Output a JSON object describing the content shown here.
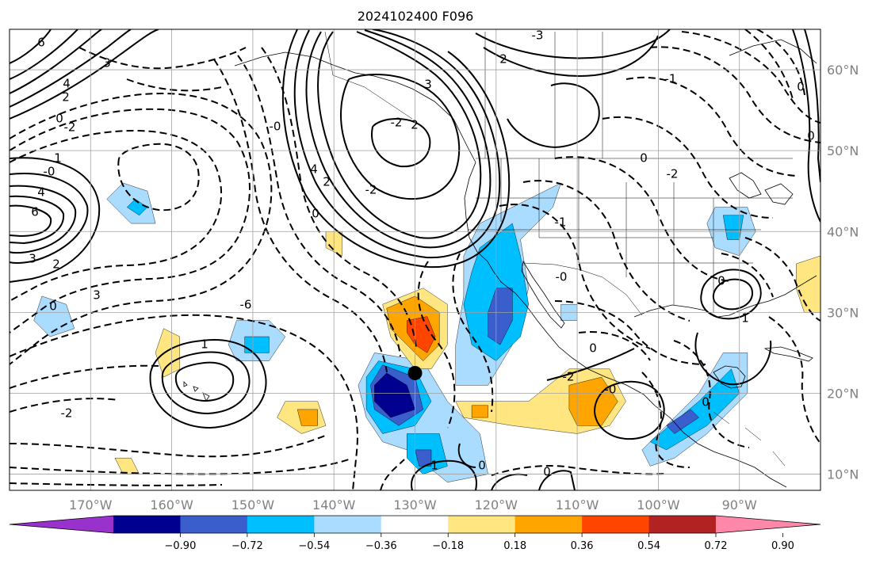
{
  "map": {
    "title": "2024102400 F096",
    "lat_labels": [
      "60°N",
      "50°N",
      "40°N",
      "30°N",
      "20°N",
      "10°N"
    ],
    "lon_labels": [
      "170°W",
      "160°W",
      "150°W",
      "140°W",
      "130°W",
      "120°W",
      "110°W",
      "100°W",
      "90°W"
    ],
    "extent": {
      "lon_min": -180,
      "lon_max": -80,
      "lat_min": 8,
      "lat_max": 65
    },
    "gridlines": true,
    "contour_labels": [
      "6",
      "3",
      "4",
      "2",
      "0",
      "-2",
      "1",
      "-0",
      "4",
      "6",
      "3",
      "2",
      "0",
      "3",
      "-2",
      "-6",
      "4",
      "2",
      "0",
      "1",
      "3",
      "2",
      "-3",
      "-2",
      "2",
      "-2",
      "-0",
      "-1",
      "0",
      "-2",
      "-1",
      "-0",
      "0",
      "1",
      "0",
      "0",
      "1",
      "0",
      "-0",
      "0",
      "-2",
      "0",
      "0"
    ],
    "marker": {
      "name": "center-point",
      "lon": -130.0,
      "lat": 22.5,
      "color": "#000000"
    },
    "shading": [
      {
        "name": "blue-pacific-a",
        "color": "#aadcff",
        "pts": [
          [
            -168,
            44
          ],
          [
            -165,
            41
          ],
          [
            -162,
            41
          ],
          [
            -163,
            45
          ],
          [
            -166,
            46
          ]
        ]
      },
      {
        "name": "blue-pacific-a-core",
        "color": "#00bfff",
        "pts": [
          [
            -165.5,
            43
          ],
          [
            -164,
            42
          ],
          [
            -163,
            43
          ],
          [
            -164.5,
            44
          ]
        ]
      },
      {
        "name": "blue-small-w",
        "color": "#aadcff",
        "pts": [
          [
            -176,
            32
          ],
          [
            -173,
            31
          ],
          [
            -172,
            28
          ],
          [
            -175,
            27
          ],
          [
            -177,
            29
          ]
        ]
      },
      {
        "name": "yellow-158",
        "color": "#ffe680",
        "pts": [
          [
            -161,
            28
          ],
          [
            -159,
            27
          ],
          [
            -159,
            23
          ],
          [
            -161,
            22
          ],
          [
            -162,
            25
          ]
        ]
      },
      {
        "name": "blue-148",
        "color": "#aadcff",
        "pts": [
          [
            -152,
            29
          ],
          [
            -148,
            29
          ],
          [
            -146,
            27
          ],
          [
            -148,
            24
          ],
          [
            -152,
            24
          ],
          [
            -153,
            26
          ]
        ]
      },
      {
        "name": "blue-148-core",
        "color": "#00bfff",
        "pts": [
          [
            -151,
            27
          ],
          [
            -148,
            27
          ],
          [
            -148,
            25
          ],
          [
            -151,
            25
          ]
        ]
      },
      {
        "name": "yellow-140",
        "color": "#ffe680",
        "pts": [
          [
            -141,
            40
          ],
          [
            -139,
            40
          ],
          [
            -139,
            37
          ],
          [
            -141,
            38
          ]
        ]
      },
      {
        "name": "yellow-147",
        "color": "#ffe680",
        "pts": [
          [
            -146,
            19
          ],
          [
            -142,
            19
          ],
          [
            -141,
            16
          ],
          [
            -144,
            15
          ],
          [
            -147,
            17
          ]
        ]
      },
      {
        "name": "orange-147",
        "color": "#ffa500",
        "pts": [
          [
            -144.5,
            18
          ],
          [
            -142,
            18
          ],
          [
            -142,
            16
          ],
          [
            -144,
            16
          ]
        ]
      },
      {
        "name": "yellow-165",
        "color": "#ffe680",
        "pts": [
          [
            -167,
            12
          ],
          [
            -165,
            12
          ],
          [
            -164,
            10
          ],
          [
            -166,
            10
          ]
        ]
      },
      {
        "name": "blue-main-light",
        "color": "#aadcff",
        "pts": [
          [
            -135,
            25
          ],
          [
            -129,
            24
          ],
          [
            -126,
            19
          ],
          [
            -122,
            15
          ],
          [
            -121,
            10
          ],
          [
            -126,
            9
          ],
          [
            -131,
            13
          ],
          [
            -134,
            14
          ],
          [
            -136,
            17
          ],
          [
            -137,
            21
          ]
        ]
      },
      {
        "name": "blue-main",
        "color": "#00bfff",
        "pts": [
          [
            -134.5,
            24
          ],
          [
            -130,
            23
          ],
          [
            -128,
            19
          ],
          [
            -130,
            16
          ],
          [
            -134,
            15
          ],
          [
            -136,
            18
          ],
          [
            -136,
            22
          ]
        ]
      },
      {
        "name": "blue-main-mid",
        "color": "#3a5fcd",
        "pts": [
          [
            -134,
            23.5
          ],
          [
            -130,
            22
          ],
          [
            -129,
            18
          ],
          [
            -132,
            16
          ],
          [
            -135,
            18
          ],
          [
            -135.5,
            21
          ]
        ]
      },
      {
        "name": "blue-main-core",
        "color": "#000090",
        "pts": [
          [
            -133.5,
            22.5
          ],
          [
            -131,
            21
          ],
          [
            -130,
            18
          ],
          [
            -133,
            17
          ],
          [
            -135,
            19
          ],
          [
            -135,
            21
          ]
        ]
      },
      {
        "name": "blue-south",
        "color": "#00bfff",
        "pts": [
          [
            -131,
            15
          ],
          [
            -127,
            15
          ],
          [
            -126,
            11
          ],
          [
            -129,
            10
          ],
          [
            -131,
            12
          ]
        ]
      },
      {
        "name": "blue-south-core",
        "color": "#3a5fcd",
        "pts": [
          [
            -130,
            13
          ],
          [
            -128,
            13
          ],
          [
            -128,
            11
          ],
          [
            -129.5,
            11
          ]
        ]
      },
      {
        "name": "yellow-main",
        "color": "#ffe680",
        "pts": [
          [
            -134,
            31
          ],
          [
            -129,
            33
          ],
          [
            -126,
            31
          ],
          [
            -126,
            26
          ],
          [
            -128,
            23
          ],
          [
            -130,
            23
          ],
          [
            -133,
            27
          ]
        ]
      },
      {
        "name": "orange-main",
        "color": "#ffa500",
        "pts": [
          [
            -133.5,
            30.5
          ],
          [
            -130,
            32
          ],
          [
            -127,
            30
          ],
          [
            -127,
            26
          ],
          [
            -129,
            24
          ],
          [
            -131,
            26
          ],
          [
            -133,
            28
          ]
        ]
      },
      {
        "name": "red-main",
        "color": "#ff4500",
        "pts": [
          [
            -131,
            29
          ],
          [
            -128.5,
            29.5
          ],
          [
            -127.5,
            27
          ],
          [
            -128.5,
            25
          ],
          [
            -130,
            26
          ],
          [
            -131,
            27.5
          ]
        ]
      },
      {
        "name": "blue-coast-light",
        "color": "#aadcff",
        "pts": [
          [
            -122,
            41
          ],
          [
            -116,
            44
          ],
          [
            -112,
            46
          ],
          [
            -113,
            43
          ],
          [
            -117,
            39
          ],
          [
            -116,
            33
          ],
          [
            -117,
            29
          ],
          [
            -118,
            26
          ],
          [
            -121,
            21
          ],
          [
            -125,
            21
          ],
          [
            -125,
            26
          ],
          [
            -124,
            32
          ],
          [
            -124,
            37
          ]
        ]
      },
      {
        "name": "blue-coast",
        "color": "#00bfff",
        "pts": [
          [
            -122,
            38
          ],
          [
            -118,
            41
          ],
          [
            -117,
            37
          ],
          [
            -116,
            31
          ],
          [
            -117,
            27
          ],
          [
            -120,
            24
          ],
          [
            -123,
            26
          ],
          [
            -124,
            31
          ],
          [
            -123,
            35
          ]
        ]
      },
      {
        "name": "blue-coast-mid",
        "color": "#3a5fcd",
        "pts": [
          [
            -120,
            33
          ],
          [
            -118,
            33
          ],
          [
            -118,
            29
          ],
          [
            -119.5,
            26
          ],
          [
            -121,
            27
          ],
          [
            -121,
            30
          ]
        ]
      },
      {
        "name": "blue-baja",
        "color": "#aadcff",
        "pts": [
          [
            -112,
            31
          ],
          [
            -110,
            31
          ],
          [
            -110,
            29
          ],
          [
            -112,
            29
          ]
        ]
      },
      {
        "name": "yellow-mex",
        "color": "#ffe680",
        "pts": [
          [
            -125,
            19
          ],
          [
            -116,
            19
          ],
          [
            -111,
            23
          ],
          [
            -106,
            23
          ],
          [
            -104,
            19
          ],
          [
            -106,
            16
          ],
          [
            -110,
            15
          ],
          [
            -118,
            16
          ],
          [
            -124,
            17
          ]
        ]
      },
      {
        "name": "orange-mex",
        "color": "#ffa500",
        "pts": [
          [
            -111,
            21
          ],
          [
            -107,
            22
          ],
          [
            -105,
            19
          ],
          [
            -107,
            16
          ],
          [
            -110,
            16
          ],
          [
            -111,
            18
          ]
        ]
      },
      {
        "name": "orange-mex-w",
        "color": "#ffa500",
        "pts": [
          [
            -123,
            18.5
          ],
          [
            -121,
            18.5
          ],
          [
            -121,
            17
          ],
          [
            -123,
            17
          ]
        ]
      },
      {
        "name": "blue-gulf-light",
        "color": "#aadcff",
        "pts": [
          [
            -102,
            13
          ],
          [
            -95,
            20
          ],
          [
            -92,
            25
          ],
          [
            -89,
            25
          ],
          [
            -89,
            20
          ],
          [
            -94,
            15
          ],
          [
            -98,
            12
          ],
          [
            -101,
            11
          ]
        ]
      },
      {
        "name": "blue-gulf",
        "color": "#00bfff",
        "pts": [
          [
            -101,
            14
          ],
          [
            -95,
            19
          ],
          [
            -91,
            23
          ],
          [
            -90,
            20
          ],
          [
            -94,
            16
          ],
          [
            -99,
            13
          ]
        ]
      },
      {
        "name": "blue-gulf-core",
        "color": "#3a5fcd",
        "pts": [
          [
            -99,
            16
          ],
          [
            -96,
            18
          ],
          [
            -95,
            17
          ],
          [
            -98,
            15
          ]
        ]
      },
      {
        "name": "blue-greatlakes",
        "color": "#aadcff",
        "pts": [
          [
            -93,
            43
          ],
          [
            -89,
            43
          ],
          [
            -88,
            40
          ],
          [
            -90,
            37
          ],
          [
            -93,
            38
          ],
          [
            -94,
            41
          ]
        ]
      },
      {
        "name": "blue-greatlakes-core",
        "color": "#00bfff",
        "pts": [
          [
            -92,
            42
          ],
          [
            -89.5,
            42
          ],
          [
            -90,
            39
          ],
          [
            -91.5,
            39
          ]
        ]
      },
      {
        "name": "yellow-east",
        "color": "#ffe680",
        "pts": [
          [
            -83,
            36
          ],
          [
            -80,
            37
          ],
          [
            -80,
            30
          ],
          [
            -82,
            30
          ],
          [
            -83,
            33
          ]
        ]
      }
    ],
    "colorbar": {
      "colors": [
        "#9932cc",
        "#000090",
        "#3a5fcd",
        "#00bfff",
        "#aadcff",
        "#ffffff",
        "#ffe680",
        "#ffa500",
        "#ff4500",
        "#b22222",
        "#ff88aa"
      ],
      "tick_labels": [
        "−0.90",
        "−0.72",
        "−0.54",
        "−0.36",
        "−0.18",
        "0.18",
        "0.36",
        "0.54",
        "0.72",
        "0.90"
      ]
    }
  }
}
